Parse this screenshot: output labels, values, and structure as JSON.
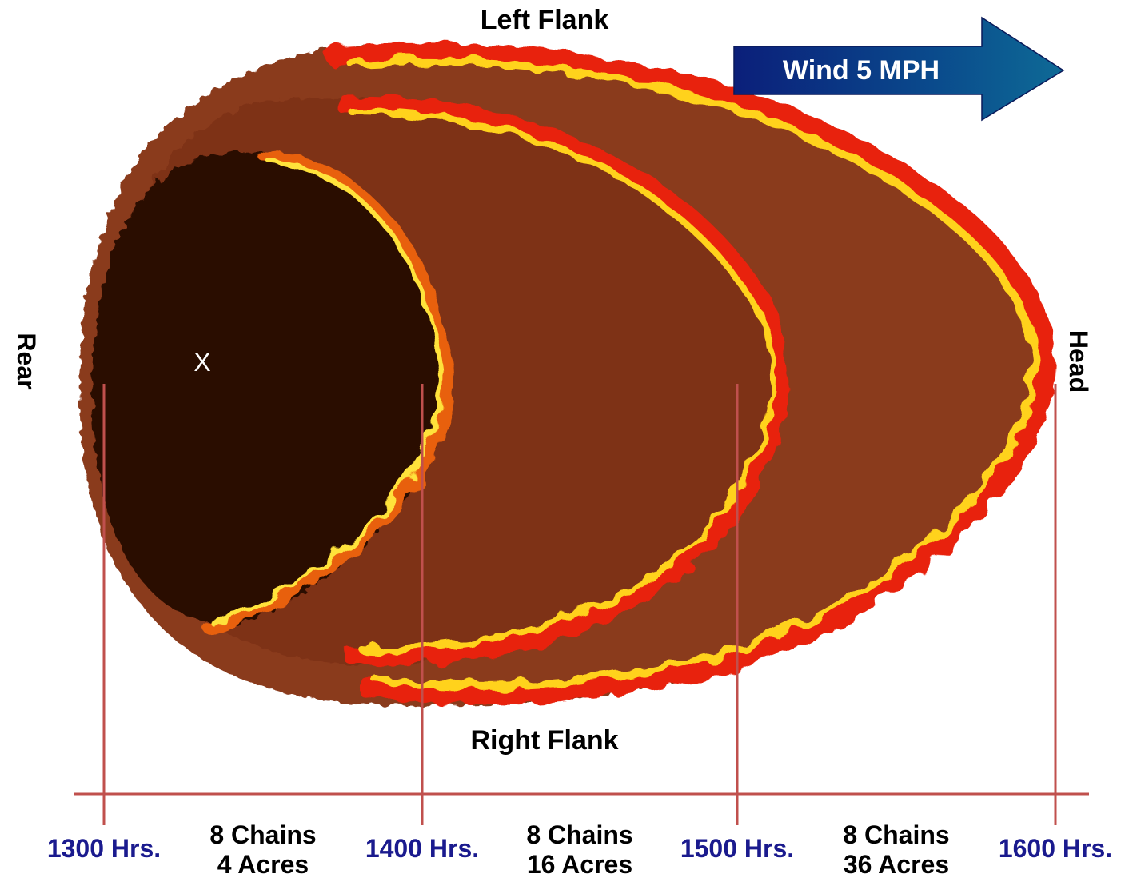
{
  "labels": {
    "left_flank": "Left Flank",
    "right_flank": "Right Flank",
    "rear": "Rear",
    "head": "Head",
    "wind": "Wind 5 MPH",
    "origin": "X"
  },
  "times": [
    "1300 Hrs.",
    "1400 Hrs.",
    "1500 Hrs.",
    "1600 Hrs."
  ],
  "segments": [
    {
      "distance": "8 Chains",
      "area": "4 Acres"
    },
    {
      "distance": "8 Chains",
      "area": "16 Acres"
    },
    {
      "distance": "8 Chains",
      "area": "36 Acres"
    }
  ]
}
